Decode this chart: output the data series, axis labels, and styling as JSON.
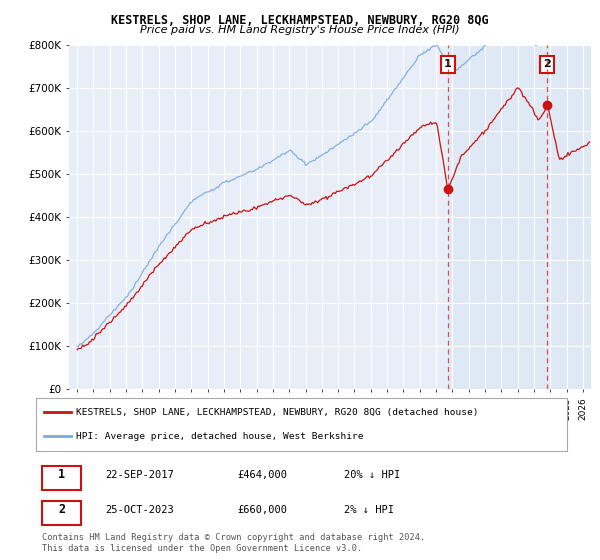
{
  "title": "KESTRELS, SHOP LANE, LECKHAMPSTEAD, NEWBURY, RG20 8QG",
  "subtitle": "Price paid vs. HM Land Registry's House Price Index (HPI)",
  "ylim": [
    0,
    800000
  ],
  "yticks": [
    0,
    100000,
    200000,
    300000,
    400000,
    500000,
    600000,
    700000,
    800000
  ],
  "ytick_labels": [
    "£0",
    "£100K",
    "£200K",
    "£300K",
    "£400K",
    "£500K",
    "£600K",
    "£700K",
    "£800K"
  ],
  "background_color": "#ffffff",
  "plot_bg_color": "#e8eef8",
  "plot_bg_shaded": "#dce6f4",
  "grid_color": "#ffffff",
  "hpi_color": "#7aaadd",
  "price_color": "#cc1111",
  "marker1_x": 2017.72,
  "marker1_price": 464000,
  "marker2_x": 2023.8,
  "marker2_price": 660000,
  "legend_house": "KESTRELS, SHOP LANE, LECKHAMPSTEAD, NEWBURY, RG20 8QG (detached house)",
  "legend_hpi": "HPI: Average price, detached house, West Berkshire",
  "table_row1_num": "1",
  "table_row1_date": "22-SEP-2017",
  "table_row1_price": "£464,000",
  "table_row1_hpi": "20% ↓ HPI",
  "table_row2_num": "2",
  "table_row2_date": "25-OCT-2023",
  "table_row2_price": "£660,000",
  "table_row2_hpi": "2% ↓ HPI",
  "footer": "Contains HM Land Registry data © Crown copyright and database right 2024.\nThis data is licensed under the Open Government Licence v3.0."
}
